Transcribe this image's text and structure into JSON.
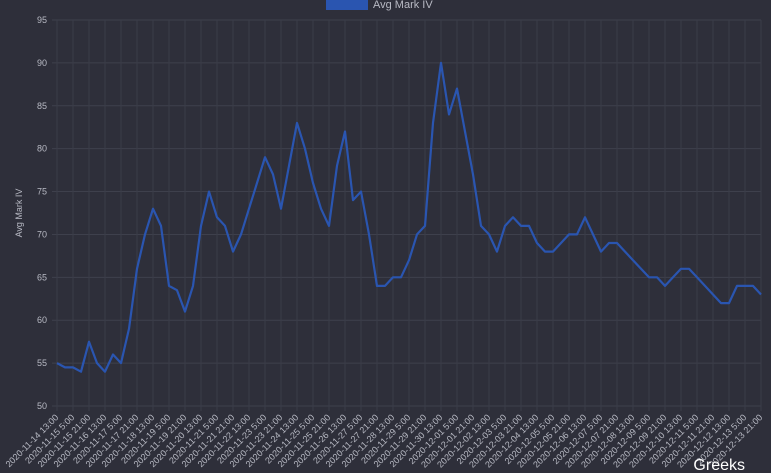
{
  "chart_data": {
    "type": "line",
    "y_label": "Avg Mark IV",
    "watermark": "Greeks",
    "categories": [
      "2020-11-14 13:00",
      null,
      "2020-11-15 5:00",
      null,
      "2020-11-15 21:00",
      null,
      "2020-11-16 13:00",
      null,
      "2020-11-17 5:00",
      null,
      "2020-11-17 21:00",
      null,
      "2020-11-18 13:00",
      null,
      "2020-11-19 5:00",
      null,
      "2020-11-19 21:00",
      null,
      "2020-11-20 13:00",
      null,
      "2020-11-21 5:00",
      null,
      "2020-11-21 21:00",
      null,
      "2020-11-22 13:00",
      null,
      "2020-11-23 5:00",
      null,
      "2020-11-23 21:00",
      null,
      "2020-11-24 13:00",
      null,
      "2020-11-25 5:00",
      null,
      "2020-11-25 21:00",
      null,
      "2020-11-26 13:00",
      null,
      "2020-11-27 5:00",
      null,
      "2020-11-27 21:00",
      null,
      "2020-11-28 13:00",
      null,
      "2020-11-29 5:00",
      null,
      "2020-11-29 21:00",
      null,
      "2020-11-30 13:00",
      null,
      "2020-12-01 5:00",
      null,
      "2020-12-01 21:00",
      null,
      "2020-12-02 13:00",
      null,
      "2020-12-03 5:00",
      null,
      "2020-12-03 21:00",
      null,
      "2020-12-04 13:00",
      null,
      "2020-12-05 5:00",
      null,
      "2020-12-05 21:00",
      null,
      "2020-12-06 13:00",
      null,
      "2020-12-07 5:00",
      null,
      "2020-12-07 21:00",
      null,
      "2020-12-08 13:00",
      null,
      "2020-12-09 5:00",
      null,
      "2020-12-09 21:00",
      null,
      "2020-12-10 13:00",
      null,
      "2020-12-11 5:00",
      null,
      "2020-12-11 21:00",
      null,
      "2020-12-12 13:00",
      null,
      "2020-12-13 5:00",
      null,
      "2020-12-13 21:00"
    ],
    "series": [
      {
        "name": "Avg Mark IV",
        "color": "#2a55b0",
        "values": [
          55,
          54.5,
          54.5,
          54,
          57.5,
          55,
          54,
          56,
          55,
          59,
          66,
          70,
          73,
          71,
          64,
          63.5,
          61,
          64,
          71,
          75,
          72,
          71,
          68,
          70,
          73,
          76,
          79,
          77,
          73,
          78,
          83,
          80,
          76,
          73,
          71,
          78,
          82,
          74,
          75,
          70,
          64,
          64,
          65,
          65,
          67,
          70,
          71,
          83,
          90,
          84,
          87,
          82,
          77,
          71,
          70,
          68,
          71,
          72,
          71,
          71,
          69,
          68,
          68,
          69,
          70,
          70,
          72,
          70,
          68,
          69,
          69,
          68,
          67,
          66,
          65,
          65,
          64,
          65,
          66,
          66,
          65,
          64,
          63,
          62,
          62,
          64,
          64,
          64,
          63
        ]
      }
    ],
    "ylim": [
      50,
      95
    ],
    "yticks": [
      50,
      55,
      60,
      65,
      70,
      75,
      80,
      85,
      90,
      95
    ],
    "grid": true
  }
}
